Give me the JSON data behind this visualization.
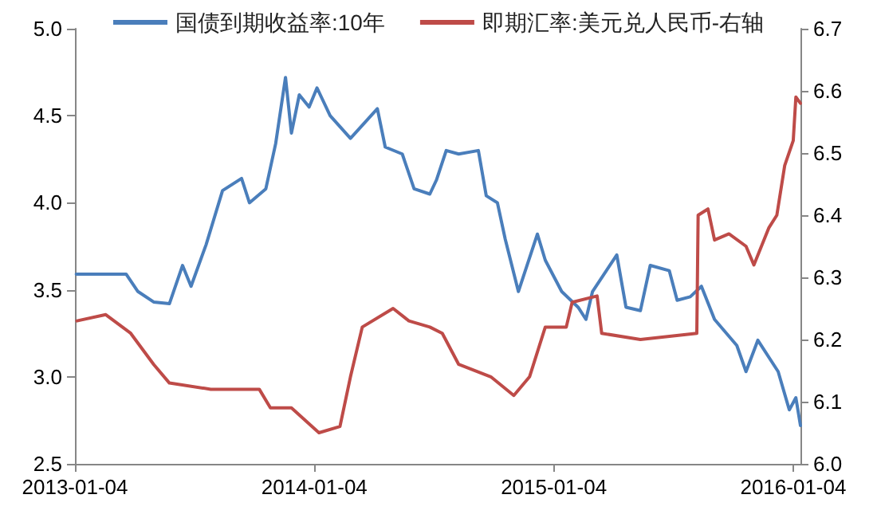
{
  "chart_data": {
    "type": "line",
    "legend": "top",
    "grid": false,
    "marker": "none",
    "line_style": "solid",
    "xlim": [
      "2013-01-04",
      "2016-01-15"
    ],
    "xticks": [
      "2013-01-04",
      "2014-01-04",
      "2015-01-04",
      "2016-01-04"
    ],
    "ylim": [
      2.5,
      5.0
    ],
    "yticks": [
      {
        "value": 2.5,
        "label": "2.5"
      },
      {
        "value": 3.0,
        "label": "3.0"
      },
      {
        "value": 3.5,
        "label": "3.5"
      },
      {
        "value": 4.0,
        "label": "4.0"
      },
      {
        "value": 4.5,
        "label": "4.5"
      },
      {
        "value": 5.0,
        "label": "5.0"
      }
    ],
    "y2lim": [
      6.0,
      6.7
    ],
    "y2ticks": [
      {
        "value": 6.0,
        "label": "6.0"
      },
      6.1,
      6.2,
      6.3,
      6.4,
      6.5,
      6.6,
      6.7
    ],
    "series": [
      {
        "name": "国债到期收益率:10年",
        "color": "#4a7ebb",
        "x": [
          "2013-01-06",
          "2013-03-23",
          "2013-04-10",
          "2013-05-04",
          "2013-05-28",
          "2013-06-17",
          "2013-06-30",
          "2013-07-23",
          "2013-08-17",
          "2013-09-15",
          "2013-09-27",
          "2013-10-22",
          "2013-11-06",
          "2013-11-21",
          "2013-11-30",
          "2013-12-12",
          "2013-12-27",
          "2014-01-08",
          "2014-01-28",
          "2014-02-28",
          "2014-04-10",
          "2014-04-22",
          "2014-05-18",
          "2014-06-05",
          "2014-06-29",
          "2014-07-09",
          "2014-07-24",
          "2014-08-12",
          "2014-09-11",
          "2014-09-23",
          "2014-10-10",
          "2014-10-22",
          "2014-11-11",
          "2014-12-10",
          "2014-12-22",
          "2015-01-16",
          "2015-02-10",
          "2015-02-22",
          "2015-03-04",
          "2015-04-10",
          "2015-04-24",
          "2015-05-16",
          "2015-05-31",
          "2015-06-29",
          "2015-07-11",
          "2015-07-31",
          "2015-08-17",
          "2015-09-06",
          "2015-10-10",
          "2015-10-24",
          "2015-11-11",
          "2015-12-12",
          "2015-12-29",
          "2016-01-08",
          "2016-01-15"
        ],
        "values": [
          3.59,
          3.59,
          3.49,
          3.43,
          3.42,
          3.64,
          3.52,
          3.76,
          4.07,
          4.14,
          4.0,
          4.08,
          4.34,
          4.72,
          4.4,
          4.62,
          4.55,
          4.66,
          4.5,
          4.37,
          4.54,
          4.32,
          4.28,
          4.08,
          4.05,
          4.13,
          4.3,
          4.28,
          4.3,
          4.04,
          4.0,
          3.79,
          3.49,
          3.82,
          3.67,
          3.49,
          3.4,
          3.33,
          3.49,
          3.7,
          3.4,
          3.38,
          3.64,
          3.61,
          3.44,
          3.46,
          3.52,
          3.33,
          3.18,
          3.03,
          3.21,
          3.03,
          2.81,
          2.88,
          2.72
        ]
      },
      {
        "name": "即期汇率:美元兑人民币-右轴",
        "color": "#be4b48",
        "axis": "y2",
        "x": [
          "2013-01-07",
          "2013-02-20",
          "2013-03-30",
          "2013-05-04",
          "2013-05-28",
          "2013-07-30",
          "2013-10-12",
          "2013-10-29",
          "2013-11-30",
          "2014-01-11",
          "2014-02-12",
          "2014-02-28",
          "2014-03-18",
          "2014-05-04",
          "2014-05-28",
          "2014-06-29",
          "2014-07-18",
          "2014-08-12",
          "2014-09-30",
          "2014-11-04",
          "2014-11-28",
          "2014-12-22",
          "2015-01-23",
          "2015-02-01",
          "2015-03-11",
          "2015-03-18",
          "2015-05-16",
          "2015-08-10",
          "2015-08-12",
          "2015-08-27",
          "2015-09-06",
          "2015-09-28",
          "2015-10-24",
          "2015-11-05",
          "2015-11-28",
          "2015-12-10",
          "2015-12-22",
          "2016-01-04",
          "2016-01-08",
          "2016-01-15"
        ],
        "values": [
          6.23,
          6.24,
          6.21,
          6.16,
          6.13,
          6.12,
          6.12,
          6.09,
          6.09,
          6.05,
          6.06,
          6.14,
          6.22,
          6.25,
          6.23,
          6.22,
          6.21,
          6.16,
          6.14,
          6.11,
          6.14,
          6.22,
          6.22,
          6.26,
          6.27,
          6.21,
          6.2,
          6.21,
          6.4,
          6.41,
          6.36,
          6.37,
          6.35,
          6.32,
          6.38,
          6.4,
          6.48,
          6.52,
          6.59,
          6.58
        ]
      }
    ]
  }
}
